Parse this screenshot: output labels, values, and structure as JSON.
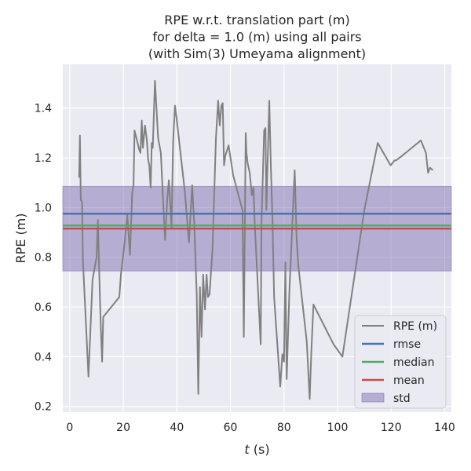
{
  "chart_data": {
    "type": "line",
    "title_lines": [
      "RPE w.r.t. translation part (m)",
      "for delta = 1.0 (m) using all pairs",
      "(with Sim(3) Umeyama alignment)"
    ],
    "xlabel_italic": "t",
    "xlabel_rest": " (s)",
    "ylabel": "RPE (m)",
    "xlim": [
      -2.6,
      142.5
    ],
    "ylim": [
      0.177,
      1.576
    ],
    "x_ticks": [
      0,
      20,
      40,
      60,
      80,
      100,
      120,
      140
    ],
    "y_ticks": [
      0.2,
      0.4,
      0.6,
      0.8,
      1.0,
      1.2,
      1.4
    ],
    "y_tick_labels": [
      "0.2",
      "0.4",
      "0.6",
      "0.8",
      "1.0",
      "1.2",
      "1.4"
    ],
    "grid": true,
    "legend_position": "lower-right",
    "series": [
      {
        "name": "RPE (m)",
        "color": "#808080",
        "x": [
          3.5,
          3.8,
          4.1,
          4.3,
          4.6,
          4.9,
          7.0,
          8.5,
          10.0,
          10.5,
          11.0,
          11.6,
          12.1,
          12.5,
          18.5,
          19.1,
          20.5,
          21.5,
          22.5,
          23.3,
          23.8,
          24.2,
          26.0,
          26.4,
          26.9,
          27.3,
          28.1,
          28.8,
          29.3,
          29.7,
          30.2,
          30.6,
          31.0,
          31.8,
          33.0,
          34.0,
          35.0,
          35.6,
          36.4,
          37.0,
          38.0,
          38.6,
          39.3,
          40.0,
          43.0,
          44.5,
          45.7,
          46.5,
          47.4,
          48.0,
          48.6,
          49.2,
          49.8,
          50.5,
          51.1,
          51.6,
          52.2,
          53.3,
          54.6,
          55.4,
          56.0,
          56.6,
          57.1,
          57.6,
          58.1,
          59.3,
          61.0,
          64.5,
          65.0,
          65.7,
          66.0,
          66.4,
          67.2,
          68.0,
          68.6,
          69.1,
          71.3,
          71.6,
          72.6,
          73.1,
          73.4,
          74.5,
          75.1,
          75.7,
          76.3,
          78.6,
          79.4,
          80.0,
          80.5,
          81.0,
          82.0,
          84.0,
          84.7,
          85.3,
          88.5,
          89.6,
          90.2,
          91.0,
          98.5,
          101.8,
          110.0,
          115.0,
          119.8,
          121.3,
          121.9,
          124.3,
          131.1,
          133.0,
          133.8,
          134.5,
          135.6
        ],
        "y": [
          1.12,
          1.29,
          1.03,
          1.03,
          1.02,
          0.79,
          0.32,
          0.71,
          0.8,
          0.95,
          0.74,
          0.52,
          0.38,
          0.56,
          0.64,
          0.73,
          0.86,
          0.97,
          0.81,
          1.06,
          1.09,
          1.31,
          1.23,
          1.22,
          1.35,
          1.24,
          1.33,
          1.27,
          1.19,
          1.17,
          1.08,
          1.26,
          1.24,
          1.51,
          1.28,
          1.22,
          0.99,
          0.87,
          1.03,
          1.11,
          0.92,
          1.27,
          1.41,
          1.35,
          1.06,
          0.86,
          1.09,
          0.93,
          0.65,
          0.25,
          0.68,
          0.48,
          0.73,
          0.59,
          0.73,
          0.64,
          0.65,
          0.83,
          1.28,
          1.43,
          1.33,
          1.41,
          1.42,
          1.17,
          1.21,
          1.25,
          1.13,
          0.99,
          0.48,
          1.3,
          1.22,
          1.18,
          1.14,
          1.05,
          1.08,
          0.93,
          0.45,
          0.94,
          1.31,
          1.32,
          0.99,
          1.43,
          1.16,
          0.95,
          0.64,
          0.28,
          0.41,
          0.38,
          0.78,
          0.31,
          0.66,
          1.15,
          0.88,
          0.77,
          0.46,
          0.23,
          0.42,
          0.61,
          0.45,
          0.4,
          0.99,
          1.26,
          1.17,
          1.19,
          1.19,
          1.21,
          1.27,
          1.22,
          1.14,
          1.16,
          1.15
        ]
      },
      {
        "name": "rmse",
        "color": "#4c72b0",
        "value": 0.975
      },
      {
        "name": "median",
        "color": "#55a868",
        "value": 0.928
      },
      {
        "name": "mean",
        "color": "#c44e52",
        "value": 0.915
      }
    ],
    "std_band": {
      "name": "std",
      "color": "#8172b2",
      "low": 0.745,
      "high": 1.085
    },
    "legend": [
      "RPE (m)",
      "rmse",
      "median",
      "mean",
      "std"
    ]
  }
}
